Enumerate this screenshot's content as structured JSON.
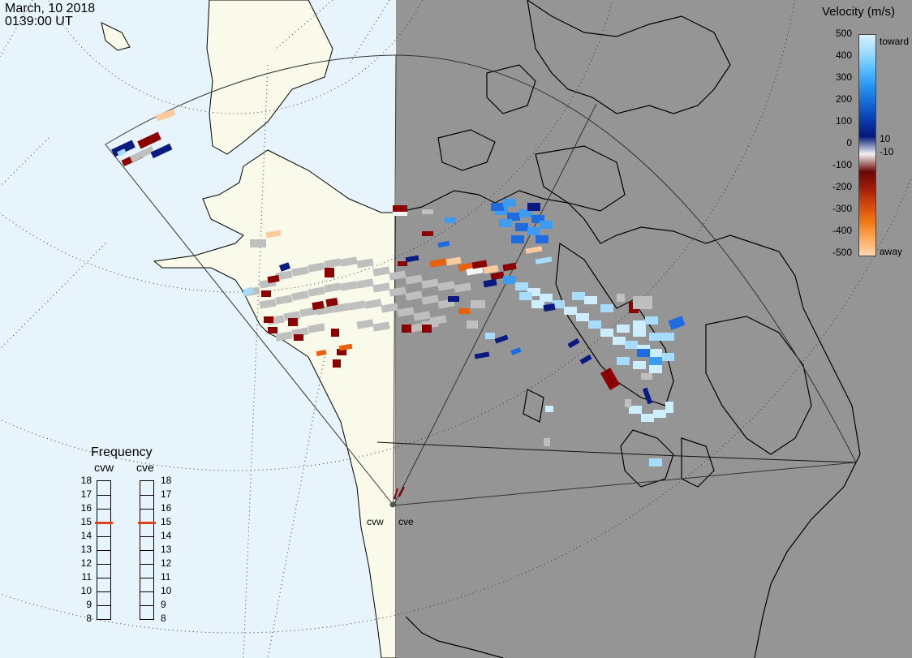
{
  "header": {
    "date": "March, 10 2018",
    "time": "0139:00 UT"
  },
  "colorbar": {
    "title": "Velocity (m/s)",
    "ticks": [
      "500",
      "400",
      "300",
      "200",
      "100",
      "0",
      "-100",
      "-200",
      "-300",
      "-400",
      "-500"
    ],
    "toward_label": "toward",
    "away_label": "away",
    "plus10_label": "10",
    "minus10_label": "-10",
    "stops": [
      "#d6f0ff",
      "#9fdcff",
      "#5cc0ff",
      "#2a96f2",
      "#1469d6",
      "#0a3fb0",
      "#041a78",
      "#f2f2f2",
      "#6b0606",
      "#9e1a0a",
      "#d2480e",
      "#f07a14",
      "#ffa85a",
      "#ffd8b0"
    ]
  },
  "frequency": {
    "title": "Frequency",
    "radars": [
      "cvw",
      "cve"
    ],
    "scale": [
      "18",
      "17",
      "16",
      "15",
      "14",
      "13",
      "12",
      "11",
      "10",
      "9",
      "8"
    ],
    "cvw_value": 15,
    "cve_value": 15,
    "marker_color": "#e0401a"
  },
  "radar_sites": [
    "cvw",
    "cve"
  ],
  "colors": {
    "ocean": "#e8f4fc",
    "land": "#fafaeb",
    "night": "#959595",
    "ground_scatter": "#bfbfbf"
  }
}
